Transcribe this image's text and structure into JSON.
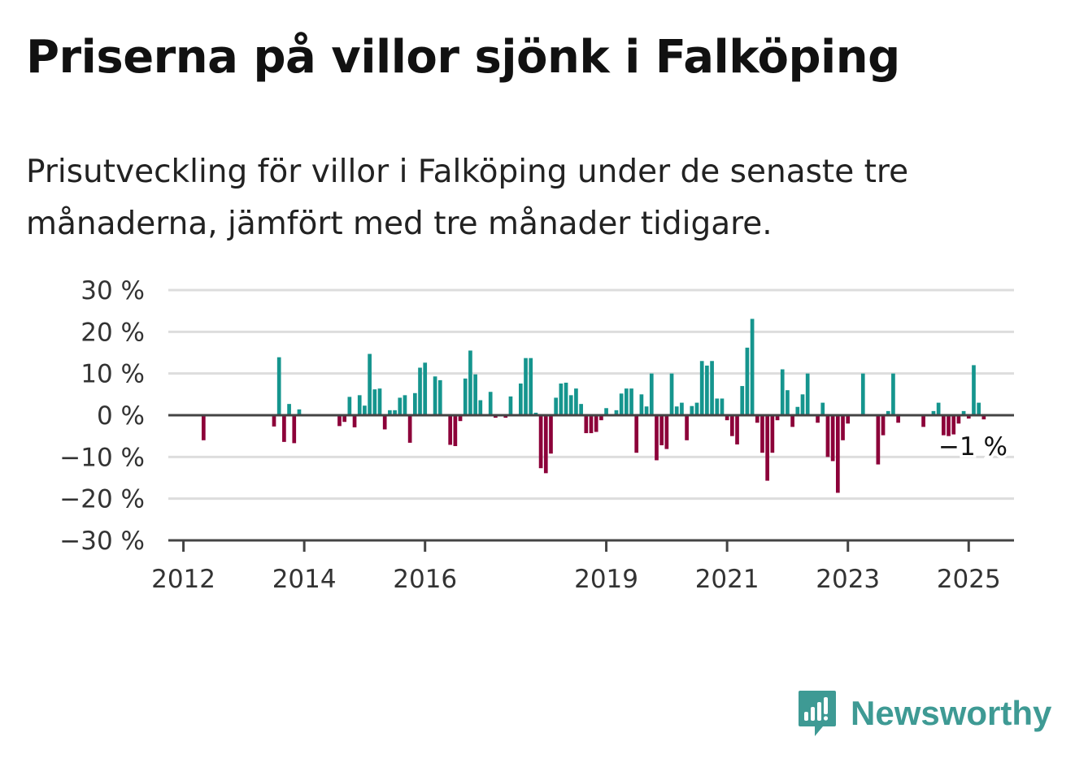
{
  "title": "Priserna på villor sjönk i Falköping",
  "subtitle": "Prisutveckling för villor i Falköping under de senaste tre månaderna, jämfört med tre månader tidigare.",
  "brand": {
    "name": "Newsworthy",
    "icon": "newsworthy-logo-icon"
  },
  "colors": {
    "positive": "#15958e",
    "negative": "#8c0039",
    "grid": "#dddddd",
    "axis": "#444444",
    "brand": "#3e9a94"
  },
  "chart_data": {
    "type": "bar",
    "title": "Priserna på villor sjönk i Falköping",
    "subtitle": "Prisutveckling för villor i Falköping under de senaste tre månaderna, jämfört med tre månader tidigare.",
    "xlabel": "",
    "ylabel": "",
    "ylim": [
      -30,
      30
    ],
    "y_ticks": [
      30,
      20,
      10,
      0,
      -10,
      -20,
      -30
    ],
    "y_tick_labels": [
      "30 %",
      "20 %",
      "10 %",
      "0 %",
      "−10 %",
      "−20 %",
      "−30 %"
    ],
    "x_ticks": [
      "2012-01",
      "2014-01",
      "2016-01",
      "2019-01",
      "2021-01",
      "2023-01",
      "2025-01"
    ],
    "x_tick_labels": [
      "2012",
      "2014",
      "2016",
      "2019",
      "2021",
      "2023",
      "2025"
    ],
    "x_start": "2011-10",
    "x_end": "2025-10",
    "grid": true,
    "end_label": "−1 %",
    "series": [
      {
        "values": [
          {
            "x": "2012-05",
            "y": -6.0
          },
          {
            "x": "2013-07",
            "y": -2.7
          },
          {
            "x": "2013-08",
            "y": 13.9
          },
          {
            "x": "2013-09",
            "y": -6.4
          },
          {
            "x": "2013-10",
            "y": 2.7
          },
          {
            "x": "2013-11",
            "y": -6.7
          },
          {
            "x": "2013-12",
            "y": 1.4
          },
          {
            "x": "2014-08",
            "y": -2.6
          },
          {
            "x": "2014-09",
            "y": -1.6
          },
          {
            "x": "2014-10",
            "y": 4.4
          },
          {
            "x": "2014-11",
            "y": -2.9
          },
          {
            "x": "2014-12",
            "y": 4.8
          },
          {
            "x": "2015-01",
            "y": 2.3
          },
          {
            "x": "2015-02",
            "y": 14.7
          },
          {
            "x": "2015-03",
            "y": 6.2
          },
          {
            "x": "2015-04",
            "y": 6.4
          },
          {
            "x": "2015-05",
            "y": -3.4
          },
          {
            "x": "2015-06",
            "y": 1.2
          },
          {
            "x": "2015-07",
            "y": 1.2
          },
          {
            "x": "2015-08",
            "y": 4.2
          },
          {
            "x": "2015-09",
            "y": 4.8
          },
          {
            "x": "2015-10",
            "y": -6.6
          },
          {
            "x": "2015-11",
            "y": 5.3
          },
          {
            "x": "2015-12",
            "y": 11.4
          },
          {
            "x": "2016-01",
            "y": 12.6
          },
          {
            "x": "2016-03",
            "y": 9.3
          },
          {
            "x": "2016-04",
            "y": 8.4
          },
          {
            "x": "2016-06",
            "y": -7.1
          },
          {
            "x": "2016-07",
            "y": -7.4
          },
          {
            "x": "2016-08",
            "y": -1.4
          },
          {
            "x": "2016-09",
            "y": 8.8
          },
          {
            "x": "2016-10",
            "y": 15.5
          },
          {
            "x": "2016-11",
            "y": 9.8
          },
          {
            "x": "2016-12",
            "y": 3.6
          },
          {
            "x": "2017-02",
            "y": 5.6
          },
          {
            "x": "2017-03",
            "y": -0.6
          },
          {
            "x": "2017-05",
            "y": -0.6
          },
          {
            "x": "2017-06",
            "y": 4.5
          },
          {
            "x": "2017-08",
            "y": 7.6
          },
          {
            "x": "2017-09",
            "y": 13.7
          },
          {
            "x": "2017-10",
            "y": 13.7
          },
          {
            "x": "2017-11",
            "y": 0.6
          },
          {
            "x": "2017-12",
            "y": -12.7
          },
          {
            "x": "2018-01",
            "y": -13.9
          },
          {
            "x": "2018-02",
            "y": -9.2
          },
          {
            "x": "2018-03",
            "y": 4.2
          },
          {
            "x": "2018-04",
            "y": 7.6
          },
          {
            "x": "2018-05",
            "y": 7.8
          },
          {
            "x": "2018-06",
            "y": 4.8
          },
          {
            "x": "2018-07",
            "y": 6.4
          },
          {
            "x": "2018-08",
            "y": 2.7
          },
          {
            "x": "2018-09",
            "y": -4.3
          },
          {
            "x": "2018-10",
            "y": -4.3
          },
          {
            "x": "2018-11",
            "y": -4.0
          },
          {
            "x": "2018-12",
            "y": -1.2
          },
          {
            "x": "2019-01",
            "y": 1.7
          },
          {
            "x": "2019-03",
            "y": 1.2
          },
          {
            "x": "2019-04",
            "y": 5.2
          },
          {
            "x": "2019-05",
            "y": 6.4
          },
          {
            "x": "2019-06",
            "y": 6.4
          },
          {
            "x": "2019-07",
            "y": -9.0
          },
          {
            "x": "2019-08",
            "y": 5.0
          },
          {
            "x": "2019-09",
            "y": 2.1
          },
          {
            "x": "2019-10",
            "y": 10.0
          },
          {
            "x": "2019-11",
            "y": -10.8
          },
          {
            "x": "2019-12",
            "y": -7.2
          },
          {
            "x": "2020-01",
            "y": -8.1
          },
          {
            "x": "2020-02",
            "y": 10.0
          },
          {
            "x": "2020-03",
            "y": 2.1
          },
          {
            "x": "2020-04",
            "y": 3.0
          },
          {
            "x": "2020-05",
            "y": -6.0
          },
          {
            "x": "2020-06",
            "y": 2.2
          },
          {
            "x": "2020-07",
            "y": 3.0
          },
          {
            "x": "2020-08",
            "y": 13.0
          },
          {
            "x": "2020-09",
            "y": 11.9
          },
          {
            "x": "2020-10",
            "y": 13.0
          },
          {
            "x": "2020-11",
            "y": 4.0
          },
          {
            "x": "2020-12",
            "y": 4.0
          },
          {
            "x": "2021-01",
            "y": -1.2
          },
          {
            "x": "2021-02",
            "y": -5.0
          },
          {
            "x": "2021-03",
            "y": -7.0
          },
          {
            "x": "2021-04",
            "y": 7.0
          },
          {
            "x": "2021-05",
            "y": 16.2
          },
          {
            "x": "2021-06",
            "y": 23.1
          },
          {
            "x": "2021-07",
            "y": -1.8
          },
          {
            "x": "2021-08",
            "y": -9.0
          },
          {
            "x": "2021-09",
            "y": -15.7
          },
          {
            "x": "2021-10",
            "y": -9.0
          },
          {
            "x": "2021-11",
            "y": -1.2
          },
          {
            "x": "2021-12",
            "y": 11.0
          },
          {
            "x": "2022-01",
            "y": 6.0
          },
          {
            "x": "2022-02",
            "y": -2.8
          },
          {
            "x": "2022-03",
            "y": 2.0
          },
          {
            "x": "2022-04",
            "y": 5.0
          },
          {
            "x": "2022-05",
            "y": 10.0
          },
          {
            "x": "2022-07",
            "y": -1.8
          },
          {
            "x": "2022-08",
            "y": 3.0
          },
          {
            "x": "2022-09",
            "y": -10.0
          },
          {
            "x": "2022-10",
            "y": -11.0
          },
          {
            "x": "2022-11",
            "y": -18.6
          },
          {
            "x": "2022-12",
            "y": -6.0
          },
          {
            "x": "2023-01",
            "y": -2.0
          },
          {
            "x": "2023-04",
            "y": 10.0
          },
          {
            "x": "2023-07",
            "y": -11.8
          },
          {
            "x": "2023-08",
            "y": -4.8
          },
          {
            "x": "2023-09",
            "y": 1.0
          },
          {
            "x": "2023-10",
            "y": 10.0
          },
          {
            "x": "2023-11",
            "y": -1.8
          },
          {
            "x": "2024-04",
            "y": -2.8
          },
          {
            "x": "2024-06",
            "y": 1.0
          },
          {
            "x": "2024-07",
            "y": 3.0
          },
          {
            "x": "2024-08",
            "y": -4.8
          },
          {
            "x": "2024-09",
            "y": -5.0
          },
          {
            "x": "2024-10",
            "y": -4.6
          },
          {
            "x": "2024-11",
            "y": -2.0
          },
          {
            "x": "2024-12",
            "y": 1.0
          },
          {
            "x": "2025-01",
            "y": -0.8
          },
          {
            "x": "2025-02",
            "y": 12.0
          },
          {
            "x": "2025-03",
            "y": 3.0
          },
          {
            "x": "2025-04",
            "y": -1.0
          }
        ]
      }
    ]
  }
}
